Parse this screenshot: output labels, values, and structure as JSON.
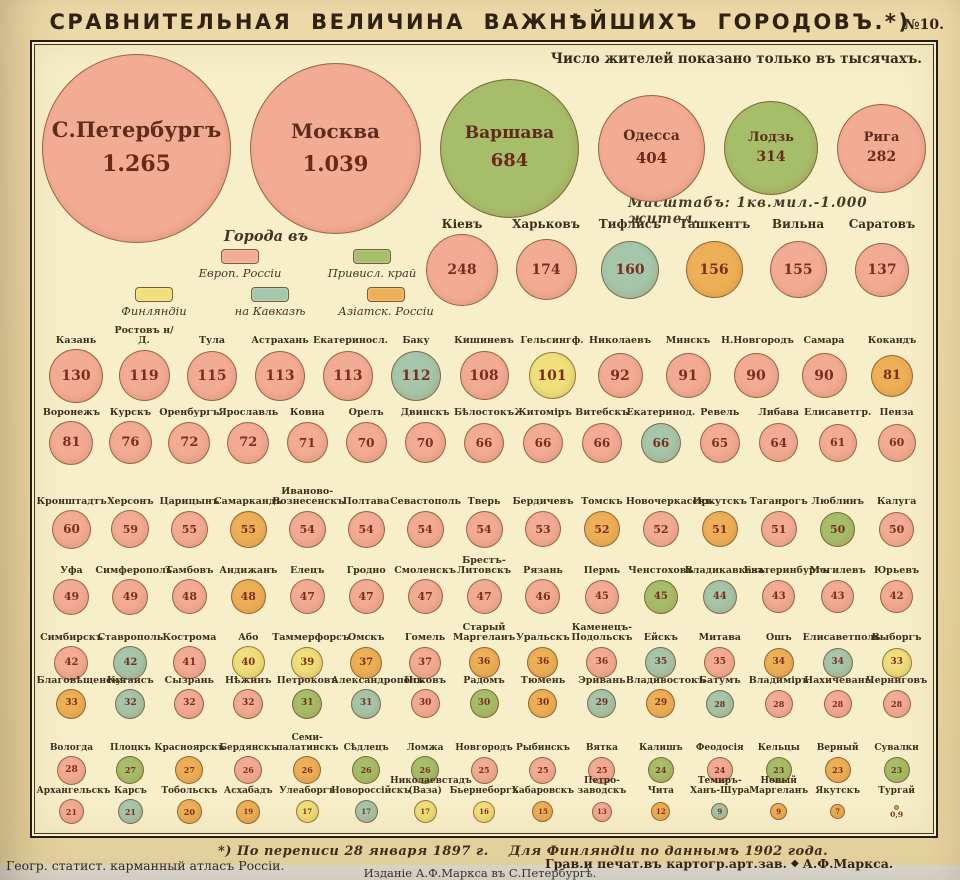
{
  "page": {
    "title": "СРАВНИТЕЛЬНАЯ ВЕЛИЧИНА ВАЖНѢЙШИХЪ ГОРОДОВЪ.*)",
    "plate_number": "№10.",
    "unit_note": "Число жителей показано только въ тысячахъ.",
    "scale_note": "Масштабъ: 1кв.мил.-1.000 жител.",
    "footnote": "*) По переписи 28 января 1897 г.    Для Финляндіи по даннымъ 1902 года.",
    "credit_prefix": "Грав.и печат.въ картогр.арт.зав.",
    "credit_mark": "◆",
    "credit_suffix": "А.Ф.Маркса.",
    "atlas_source": "Геогр. статист. карманный атласъ Россіи.",
    "publisher_imprint": "Изданіе А.Ф.Маркса въ С.Петербургѣ."
  },
  "legend": {
    "title": "Города въ",
    "items": [
      {
        "region": "eur",
        "label": "Европ. Россіи",
        "color": "#f3ac94"
      },
      {
        "region": "vis",
        "label": "Привисл. край",
        "color": "#a6be69"
      },
      {
        "region": "fin",
        "label": "Финляндіи",
        "color": "#efe07b"
      },
      {
        "region": "kav",
        "label": "на Кавказѣ",
        "color": "#a5c6aa"
      },
      {
        "region": "asia",
        "label": "Азіатск. Россіи",
        "color": "#edb056"
      }
    ]
  },
  "chart_data": {
    "type": "proportional-area-circles",
    "title": "Сравнительная величина важнѣйшихъ городовъ",
    "unit": "тысячи жителей",
    "region_colors": {
      "eur": "#f3ac94",
      "vis": "#a6be69",
      "fin": "#efe07b",
      "kav": "#a5c6aa",
      "asia": "#edb056"
    },
    "rows": [
      {
        "cities": [
          {
            "n": "С.Петербургъ",
            "v": 1265,
            "d": "1.265",
            "r": "eur"
          },
          {
            "n": "Москва",
            "v": 1039,
            "d": "1.039",
            "r": "eur"
          },
          {
            "n": "Варшава",
            "v": 684,
            "r": "vis"
          },
          {
            "n": "Одесса",
            "v": 404,
            "r": "eur"
          },
          {
            "n": "Лодзь",
            "v": 314,
            "r": "vis"
          },
          {
            "n": "Рига",
            "v": 282,
            "r": "eur"
          }
        ]
      },
      {
        "cities": [
          {
            "n": "Кіевъ",
            "v": 248,
            "r": "eur"
          },
          {
            "n": "Харьковъ",
            "v": 174,
            "r": "eur"
          },
          {
            "n": "Тифлисъ",
            "v": 160,
            "r": "kav"
          },
          {
            "n": "Ташкентъ",
            "v": 156,
            "r": "asia"
          },
          {
            "n": "Вильна",
            "v": 155,
            "r": "eur"
          },
          {
            "n": "Саратовъ",
            "v": 137,
            "r": "eur"
          }
        ]
      },
      {
        "cities": [
          {
            "n": "Казань",
            "v": 130,
            "r": "eur"
          },
          {
            "n": "Ростовъ н/Д.",
            "v": 119,
            "r": "eur"
          },
          {
            "n": "Тула",
            "v": 115,
            "r": "eur"
          },
          {
            "n": "Астрахань",
            "v": 113,
            "r": "eur"
          },
          {
            "n": "Екатериносл.",
            "v": 113,
            "r": "eur"
          },
          {
            "n": "Баку",
            "v": 112,
            "r": "kav"
          },
          {
            "n": "Кишиневъ",
            "v": 108,
            "r": "eur"
          },
          {
            "n": "Гельсингф.",
            "v": 101,
            "r": "fin"
          },
          {
            "n": "Николаевъ",
            "v": 92,
            "r": "eur"
          },
          {
            "n": "Минскъ",
            "v": 91,
            "r": "eur"
          },
          {
            "n": "Н.Новгородъ",
            "v": 90,
            "r": "eur"
          },
          {
            "n": "Самара",
            "v": 90,
            "r": "eur"
          },
          {
            "n": "Кокандъ",
            "v": 81,
            "r": "asia"
          }
        ]
      },
      {
        "cities": [
          {
            "n": "Воронежъ",
            "v": 81,
            "r": "eur"
          },
          {
            "n": "Курскъ",
            "v": 76,
            "r": "eur"
          },
          {
            "n": "Оренбургъ",
            "v": 72,
            "r": "eur"
          },
          {
            "n": "Ярославль",
            "v": 72,
            "r": "eur"
          },
          {
            "n": "Ковна",
            "v": 71,
            "r": "eur"
          },
          {
            "n": "Орелъ",
            "v": 70,
            "r": "eur"
          },
          {
            "n": "Двинскъ",
            "v": 70,
            "r": "eur"
          },
          {
            "n": "Бѣлостокъ",
            "v": 66,
            "r": "eur"
          },
          {
            "n": "Житоміръ",
            "v": 66,
            "r": "eur"
          },
          {
            "n": "Витебскъ",
            "v": 66,
            "r": "eur"
          },
          {
            "n": "Екатеринод.",
            "v": 66,
            "r": "kav"
          },
          {
            "n": "Ревель",
            "v": 65,
            "r": "eur"
          },
          {
            "n": "Либава",
            "v": 64,
            "r": "eur"
          },
          {
            "n": "Елисаветгр.",
            "v": 61,
            "r": "eur"
          },
          {
            "n": "Пенза",
            "v": 60,
            "r": "eur"
          }
        ]
      },
      {
        "cities": [
          {
            "n": "Кронштадтъ",
            "v": 60,
            "r": "eur"
          },
          {
            "n": "Херсонъ",
            "v": 59,
            "r": "eur"
          },
          {
            "n": "Царицынъ",
            "v": 55,
            "r": "eur"
          },
          {
            "n": "Самаркандъ",
            "v": 55,
            "r": "asia"
          },
          {
            "n": "Иваново-Вознесенскъ",
            "v": 54,
            "r": "eur"
          },
          {
            "n": "Полтава",
            "v": 54,
            "r": "eur"
          },
          {
            "n": "Севастополь",
            "v": 54,
            "r": "eur"
          },
          {
            "n": "Тверь",
            "v": 54,
            "r": "eur"
          },
          {
            "n": "Бердичевъ",
            "v": 53,
            "r": "eur"
          },
          {
            "n": "Томскъ",
            "v": 52,
            "r": "asia"
          },
          {
            "n": "Новочеркасскъ",
            "v": 52,
            "r": "eur"
          },
          {
            "n": "Иркутскъ",
            "v": 51,
            "r": "asia"
          },
          {
            "n": "Таганрогъ",
            "v": 51,
            "r": "eur"
          },
          {
            "n": "Люблинъ",
            "v": 50,
            "r": "vis"
          },
          {
            "n": "Калуга",
            "v": 50,
            "r": "eur"
          }
        ]
      },
      {
        "cities": [
          {
            "n": "Уфа",
            "v": 49,
            "r": "eur"
          },
          {
            "n": "Симферополь",
            "v": 49,
            "r": "eur"
          },
          {
            "n": "Тамбовъ",
            "v": 48,
            "r": "eur"
          },
          {
            "n": "Андижанъ",
            "v": 48,
            "r": "asia"
          },
          {
            "n": "Елецъ",
            "v": 47,
            "r": "eur"
          },
          {
            "n": "Гродно",
            "v": 47,
            "r": "eur"
          },
          {
            "n": "Смоленскъ",
            "v": 47,
            "r": "eur"
          },
          {
            "n": "Брестъ-Литовскъ",
            "v": 47,
            "r": "eur"
          },
          {
            "n": "Рязань",
            "v": 46,
            "r": "eur"
          },
          {
            "n": "Пермь",
            "v": 45,
            "r": "eur"
          },
          {
            "n": "Ченстоховъ",
            "v": 45,
            "r": "vis"
          },
          {
            "n": "Владикавказъ",
            "v": 44,
            "r": "kav"
          },
          {
            "n": "Екатеринбургъ",
            "v": 43,
            "r": "eur"
          },
          {
            "n": "Могилевъ",
            "v": 43,
            "r": "eur"
          },
          {
            "n": "Юрьевъ",
            "v": 42,
            "r": "eur"
          }
        ]
      },
      {
        "cities": [
          {
            "n": "Симбирскъ",
            "v": 42,
            "r": "eur"
          },
          {
            "n": "Ставрополь",
            "v": 42,
            "r": "kav"
          },
          {
            "n": "Кострома",
            "v": 41,
            "r": "eur"
          },
          {
            "n": "Або",
            "v": 40,
            "r": "fin"
          },
          {
            "n": "Таммерфорсъ",
            "v": 39,
            "r": "fin"
          },
          {
            "n": "Омскъ",
            "v": 37,
            "r": "asia"
          },
          {
            "n": "Гомель",
            "v": 37,
            "r": "eur"
          },
          {
            "n": "Старый Маргеланъ",
            "v": 36,
            "r": "asia"
          },
          {
            "n": "Уральскъ",
            "v": 36,
            "r": "asia"
          },
          {
            "n": "Каменецъ-Подольскъ",
            "v": 36,
            "r": "eur"
          },
          {
            "n": "Ейскъ",
            "v": 35,
            "r": "kav"
          },
          {
            "n": "Митава",
            "v": 35,
            "r": "eur"
          },
          {
            "n": "Ошъ",
            "v": 34,
            "r": "asia"
          },
          {
            "n": "Елисаветполь",
            "v": 34,
            "r": "kav"
          },
          {
            "n": "Выборгъ",
            "v": 33,
            "r": "fin"
          }
        ]
      },
      {
        "cities": [
          {
            "n": "Благовѣщенскъ",
            "v": 33,
            "r": "asia"
          },
          {
            "n": "Кутаисъ",
            "v": 32,
            "r": "kav"
          },
          {
            "n": "Сызрань",
            "v": 32,
            "r": "eur"
          },
          {
            "n": "Нѣжинъ",
            "v": 32,
            "r": "eur"
          },
          {
            "n": "Петроковъ",
            "v": 31,
            "r": "vis"
          },
          {
            "n": "Александрополь",
            "v": 31,
            "r": "kav"
          },
          {
            "n": "Псковъ",
            "v": 30,
            "r": "eur"
          },
          {
            "n": "Радомъ",
            "v": 30,
            "r": "vis"
          },
          {
            "n": "Тюмень",
            "v": 30,
            "r": "asia"
          },
          {
            "n": "Эривань",
            "v": 29,
            "r": "kav"
          },
          {
            "n": "Владивостокъ",
            "v": 29,
            "r": "asia"
          },
          {
            "n": "Батумъ",
            "v": 28,
            "r": "kav"
          },
          {
            "n": "Владиміръ",
            "v": 28,
            "r": "eur"
          },
          {
            "n": "Нахичевань",
            "v": 28,
            "r": "eur"
          },
          {
            "n": "Черниговъ",
            "v": 28,
            "r": "eur"
          }
        ]
      },
      {
        "cities": [
          {
            "n": "Вологда",
            "v": 28,
            "r": "eur"
          },
          {
            "n": "Плоцкъ",
            "v": 27,
            "r": "vis"
          },
          {
            "n": "Красноярскъ",
            "v": 27,
            "r": "asia"
          },
          {
            "n": "Бердянскъ",
            "v": 26,
            "r": "eur"
          },
          {
            "n": "Семи-палатинскъ",
            "v": 26,
            "r": "asia"
          },
          {
            "n": "Сѣдлецъ",
            "v": 26,
            "r": "vis"
          },
          {
            "n": "Ломжа",
            "v": 26,
            "r": "vis"
          },
          {
            "n": "Новгородъ",
            "v": 25,
            "r": "eur"
          },
          {
            "n": "Рыбинскъ",
            "v": 25,
            "r": "eur"
          },
          {
            "n": "Вятка",
            "v": 25,
            "r": "eur"
          },
          {
            "n": "Калишъ",
            "v": 24,
            "r": "vis"
          },
          {
            "n": "Феодосія",
            "v": 24,
            "r": "eur"
          },
          {
            "n": "Кельцы",
            "v": 23,
            "r": "vis"
          },
          {
            "n": "Верный",
            "v": 23,
            "r": "asia"
          },
          {
            "n": "Сувалки",
            "v": 23,
            "r": "vis"
          }
        ]
      },
      {
        "cities": [
          {
            "n": "Архангельскъ",
            "v": 21,
            "r": "eur"
          },
          {
            "n": "Карсъ",
            "v": 21,
            "r": "kav"
          },
          {
            "n": "Тобольскъ",
            "v": 20,
            "r": "asia"
          },
          {
            "n": "Асхабадъ",
            "v": 19,
            "r": "asia"
          },
          {
            "n": "Улеаборгъ",
            "v": 17,
            "r": "fin"
          },
          {
            "n": "Новороссійскъ",
            "v": 17,
            "r": "kav"
          },
          {
            "n": "Николаевстадъ (Ваза)",
            "v": 17,
            "r": "fin"
          },
          {
            "n": "Бьернеборгъ",
            "v": 16,
            "r": "fin"
          },
          {
            "n": "Хабаровскъ",
            "v": 15,
            "r": "asia"
          },
          {
            "n": "Петро-заводскъ",
            "v": 13,
            "r": "eur"
          },
          {
            "n": "Чита",
            "v": 12,
            "r": "asia"
          },
          {
            "n": "Темиръ-Ханъ-Шура",
            "v": 9,
            "r": "kav"
          },
          {
            "n": "Новый Маргеланъ",
            "v": 9,
            "r": "asia"
          },
          {
            "n": "Якутскъ",
            "v": 7,
            "r": "asia"
          },
          {
            "n": "Тургай",
            "v": 0.9,
            "d": "0,9",
            "r": "asia"
          }
        ]
      }
    ]
  }
}
